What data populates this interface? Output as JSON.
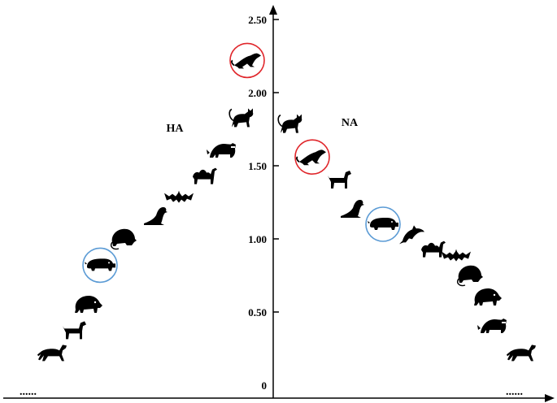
{
  "chart_data": {
    "type": "scatter",
    "title": "",
    "xlabel": "",
    "ylabel": "",
    "ylim": [
      0,
      2.6
    ],
    "y_ticks": [
      "0",
      "0.50",
      "1.00",
      "1.50",
      "2.00",
      "2.50"
    ],
    "y_tick_values": [
      0,
      0.5,
      1.0,
      1.5,
      2.0,
      2.5
    ],
    "grid": false,
    "groups": [
      {
        "label": "HA",
        "side": "left"
      },
      {
        "label": "NA",
        "side": "right"
      }
    ],
    "continuation_marks": [
      "......",
      "......"
    ],
    "series": [
      {
        "group": "HA",
        "points": [
          {
            "animal": "horse",
            "rank": 1,
            "y": 0.22,
            "highlight": "none"
          },
          {
            "animal": "dog",
            "rank": 2,
            "y": 0.37,
            "highlight": "none"
          },
          {
            "animal": "boar",
            "rank": 3,
            "y": 0.55,
            "highlight": "none"
          },
          {
            "animal": "pig",
            "rank": 4,
            "y": 0.82,
            "highlight": "blue"
          },
          {
            "animal": "rat",
            "rank": 5,
            "y": 1.0,
            "highlight": "none"
          },
          {
            "animal": "seal",
            "rank": 6,
            "y": 1.15,
            "highlight": "none"
          },
          {
            "animal": "bat",
            "rank": 7,
            "y": 1.28,
            "highlight": "none"
          },
          {
            "animal": "camel",
            "rank": 8,
            "y": 1.43,
            "highlight": "none"
          },
          {
            "animal": "raccoon",
            "rank": 9,
            "y": 1.6,
            "highlight": "none"
          },
          {
            "animal": "cat",
            "rank": 10,
            "y": 1.82,
            "highlight": "none"
          },
          {
            "animal": "ferret",
            "rank": 11,
            "y": 2.22,
            "highlight": "red"
          }
        ]
      },
      {
        "group": "NA",
        "points": [
          {
            "animal": "cat",
            "rank": 1,
            "y": 1.78,
            "highlight": "none"
          },
          {
            "animal": "ferret",
            "rank": 2,
            "y": 1.56,
            "highlight": "red"
          },
          {
            "animal": "dog",
            "rank": 3,
            "y": 1.4,
            "highlight": "none"
          },
          {
            "animal": "seal",
            "rank": 4,
            "y": 1.2,
            "highlight": "none"
          },
          {
            "animal": "pig",
            "rank": 5,
            "y": 1.1,
            "highlight": "blue"
          },
          {
            "animal": "dolphin",
            "rank": 6,
            "y": 1.02,
            "highlight": "none"
          },
          {
            "animal": "camel",
            "rank": 7,
            "y": 0.93,
            "highlight": "none"
          },
          {
            "animal": "bat",
            "rank": 8,
            "y": 0.88,
            "highlight": "none"
          },
          {
            "animal": "rat",
            "rank": 9,
            "y": 0.75,
            "highlight": "none"
          },
          {
            "animal": "boar",
            "rank": 10,
            "y": 0.6,
            "highlight": "none"
          },
          {
            "animal": "raccoon",
            "rank": 11,
            "y": 0.4,
            "highlight": "none"
          },
          {
            "animal": "horse",
            "rank": 12,
            "y": 0.22,
            "highlight": "none"
          }
        ]
      }
    ],
    "highlight_colors": {
      "red": "#e0262b",
      "blue": "#5b9bd5"
    },
    "axis_color": "#000000"
  }
}
